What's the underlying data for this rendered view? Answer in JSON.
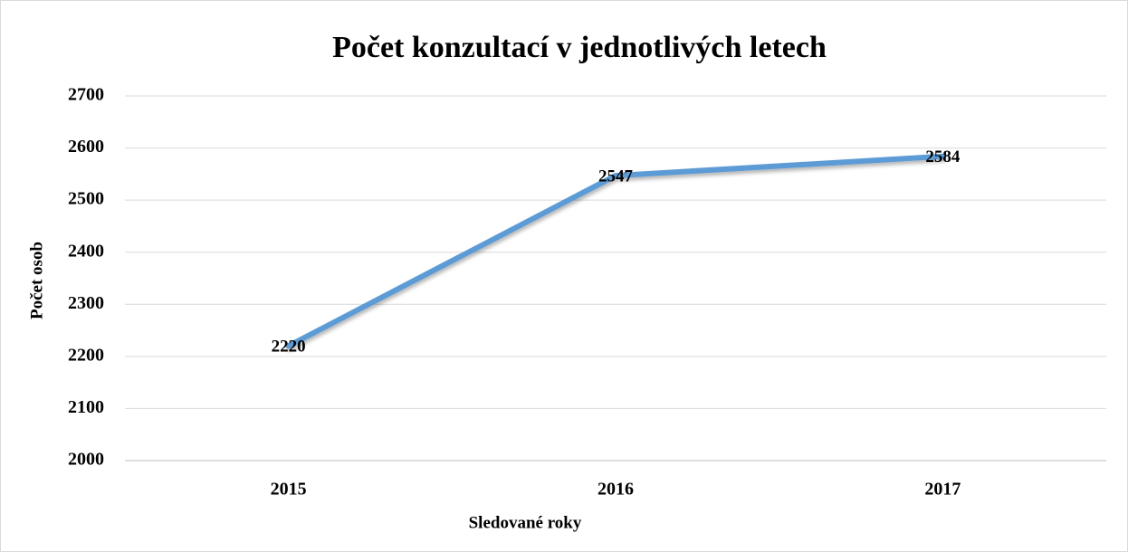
{
  "chart_data": {
    "type": "line",
    "title": "Počet konzultací v jednotlivých letech",
    "x_label": "Sledované roky",
    "y_label": "Počet osob",
    "categories": [
      "2015",
      "2016",
      "2017"
    ],
    "series": [
      {
        "name": "Počet osob",
        "color": "#5b9bd5",
        "values": [
          2220,
          2547,
          2584
        ]
      }
    ],
    "ylim": [
      2000,
      2700
    ],
    "yticks": [
      2000,
      2100,
      2200,
      2300,
      2400,
      2500,
      2600,
      2700
    ],
    "grid": true,
    "data_labels": true
  }
}
